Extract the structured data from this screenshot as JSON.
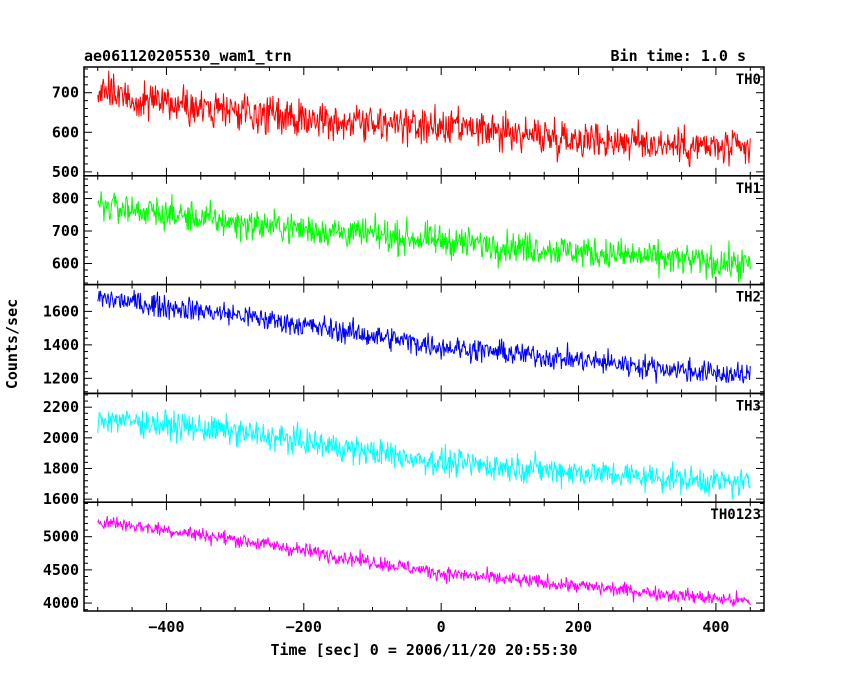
{
  "header": {
    "left": "ae061120205530_wam1_trn",
    "right": "Bin time: 1.0 s"
  },
  "chart_data": {
    "type": "line",
    "xlabel": "Time [sec] 0 = 2006/11/20 20:55:30",
    "ylabel": "Counts/sec",
    "xlim": [
      -520,
      470
    ],
    "xticks": [
      -400,
      -200,
      0,
      200,
      400
    ],
    "x_range": [
      -500,
      450
    ],
    "bin_time_s": 1.0,
    "panels": [
      {
        "name": "TH0",
        "color": "#ff0000",
        "ylim": [
          490,
          765
        ],
        "yticks": [
          500,
          600,
          700
        ],
        "trend": [
          [
            -500,
            700
          ],
          [
            -300,
            650
          ],
          [
            0,
            610
          ],
          [
            450,
            555
          ]
        ],
        "noise": 24
      },
      {
        "name": "TH1",
        "color": "#00ff00",
        "ylim": [
          535,
          870
        ],
        "yticks": [
          600,
          700,
          800
        ],
        "trend": [
          [
            -500,
            780
          ],
          [
            -300,
            725
          ],
          [
            0,
            670
          ],
          [
            450,
            595
          ]
        ],
        "noise": 24
      },
      {
        "name": "TH2",
        "color": "#0000ff",
        "ylim": [
          1110,
          1760
        ],
        "yticks": [
          1200,
          1400,
          1600
        ],
        "trend": [
          [
            -500,
            1680
          ],
          [
            -300,
            1580
          ],
          [
            0,
            1390
          ],
          [
            450,
            1210
          ]
        ],
        "noise": 35
      },
      {
        "name": "TH3",
        "color": "#00ffff",
        "ylim": [
          1580,
          2290
        ],
        "yticks": [
          1600,
          1800,
          2000,
          2200
        ],
        "trend": [
          [
            -500,
            2130
          ],
          [
            -300,
            2040
          ],
          [
            0,
            1840
          ],
          [
            450,
            1700
          ]
        ],
        "noise": 45
      },
      {
        "name": "TH0123",
        "color": "#ff00ff",
        "ylim": [
          3880,
          5520
        ],
        "yticks": [
          4000,
          4500,
          5000
        ],
        "trend": [
          [
            -500,
            5240
          ],
          [
            -300,
            4960
          ],
          [
            0,
            4450
          ],
          [
            450,
            4020
          ]
        ],
        "noise": 55
      }
    ]
  }
}
